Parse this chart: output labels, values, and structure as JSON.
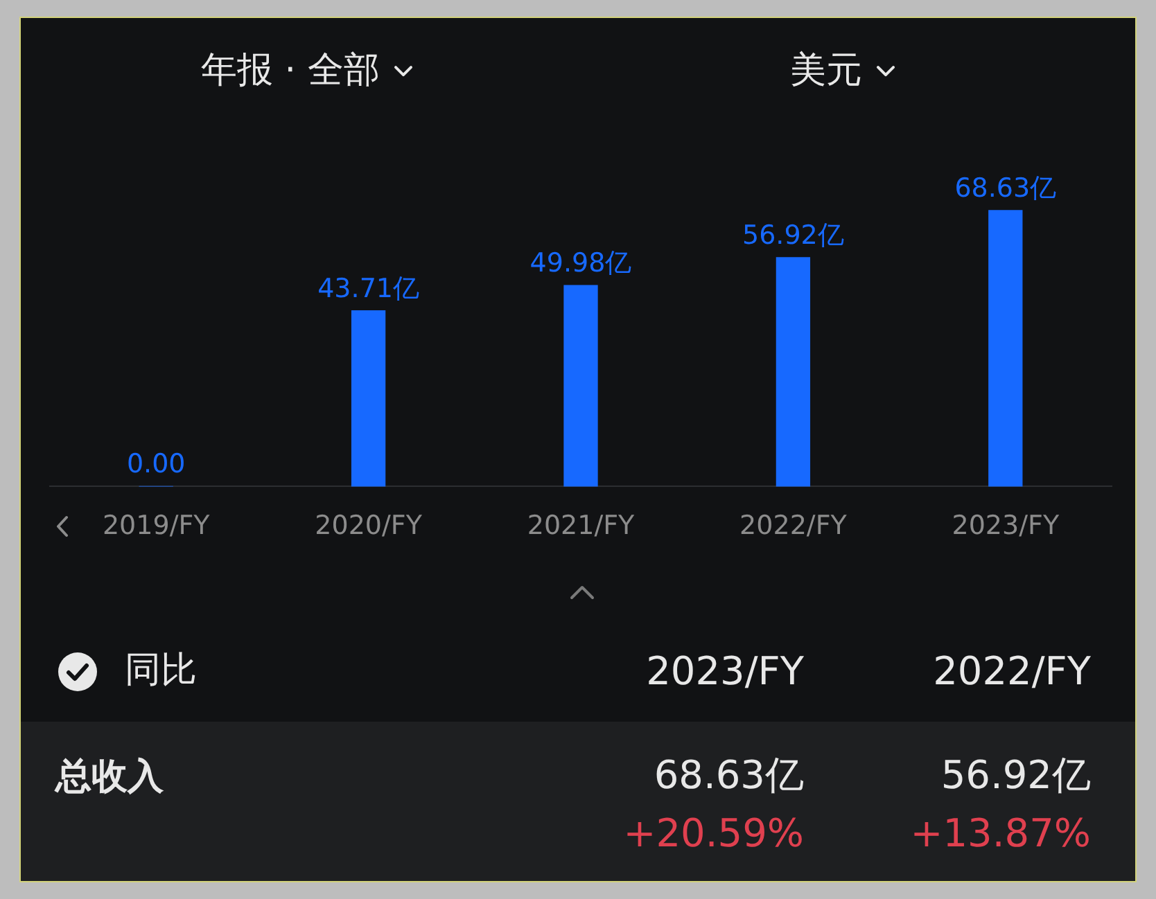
{
  "chart_data": {
    "type": "bar",
    "categories": [
      "2019/FY",
      "2020/FY",
      "2021/FY",
      "2022/FY",
      "2023/FY"
    ],
    "values": [
      0,
      43.71,
      49.98,
      56.92,
      68.63
    ],
    "color": "#1769ff",
    "value_labels": [
      "0.00",
      "43.71亿",
      "49.98亿",
      "56.92亿",
      "68.63亿"
    ],
    "tick_labels": "x",
    "annotations": [
      "年报 · 全部",
      "美元",
      "同比",
      "2023/FY",
      "2022/FY",
      "总收入",
      "68.63亿",
      "+20.59%",
      "56.92亿",
      "+13.87%"
    ]
  }
}
